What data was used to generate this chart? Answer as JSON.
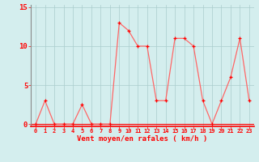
{
  "x": [
    0,
    1,
    2,
    3,
    4,
    5,
    6,
    7,
    8,
    9,
    10,
    11,
    12,
    13,
    14,
    15,
    16,
    17,
    18,
    19,
    20,
    21,
    22,
    23
  ],
  "y": [
    0,
    3,
    0,
    0,
    0,
    2.5,
    0,
    0,
    0,
    13,
    12,
    10,
    10,
    3,
    3,
    11,
    11,
    10,
    3,
    0,
    3,
    6,
    11,
    3
  ],
  "line_color": "#ff6666",
  "marker_color": "#ff0000",
  "bg_color": "#d4eeee",
  "grid_color": "#aacccc",
  "xlabel": "Vent moyen/en rafales ( km/h )",
  "xlabel_color": "#ff0000",
  "tick_color": "#ff0000",
  "ylim": [
    0,
    15
  ],
  "yticks": [
    0,
    5,
    10,
    15
  ],
  "xlim": [
    -0.5,
    23.5
  ],
  "left_spine_color": "#888888"
}
